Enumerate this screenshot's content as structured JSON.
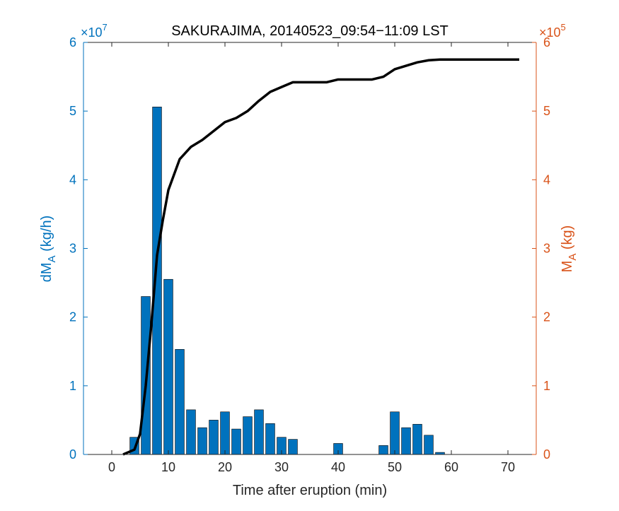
{
  "chart_data": {
    "type": "bar",
    "title": "SAKURAJIMA, 20140523_09:54−11:09 LST",
    "xlabel": "Time after eruption (min)",
    "ylabel_left": {
      "main": "dM",
      "sub": "A",
      "unit": " (kg/h)"
    },
    "ylabel_right": {
      "main": "M",
      "sub": "A",
      "unit": " (kg)"
    },
    "left_exponent": {
      "base": "×10",
      "power": "7"
    },
    "right_exponent": {
      "base": "×10",
      "power": "5"
    },
    "xlim": [
      -5,
      75
    ],
    "ylim_left": [
      0,
      6
    ],
    "ylim_right": [
      0,
      6
    ],
    "x_ticks": [
      "0",
      "10",
      "20",
      "30",
      "40",
      "50",
      "60",
      "70"
    ],
    "left_ticks": [
      "0",
      "1",
      "2",
      "3",
      "4",
      "5",
      "6"
    ],
    "right_ticks": [
      "0",
      "1",
      "2",
      "3",
      "4",
      "5",
      "6"
    ],
    "colors": {
      "bars": "#0072BD",
      "bar_edge": "#000000",
      "cumulative_line": "#000000",
      "left_axis": "#0072BD",
      "right_axis": "#D95319"
    },
    "series": [
      {
        "type": "bar",
        "axis": "left",
        "x": [
          4,
          6,
          8,
          10,
          12,
          14,
          16,
          18,
          20,
          22,
          24,
          26,
          28,
          30,
          32,
          40,
          48,
          50,
          52,
          54,
          56,
          58
        ],
        "values": [
          0.25,
          2.3,
          5.06,
          2.55,
          1.53,
          0.65,
          0.39,
          0.5,
          0.62,
          0.37,
          0.55,
          0.65,
          0.45,
          0.25,
          0.22,
          0.16,
          0.13,
          0.62,
          0.39,
          0.44,
          0.28,
          0.03
        ]
      },
      {
        "type": "line",
        "axis": "right",
        "x": [
          2,
          4,
          5,
          6,
          7,
          8,
          9,
          10,
          12,
          14,
          16,
          18,
          20,
          22,
          24,
          26,
          28,
          30,
          32,
          34,
          36,
          38,
          40,
          42,
          44,
          46,
          48,
          50,
          52,
          54,
          56,
          58,
          60,
          62,
          64,
          66,
          68,
          70,
          72
        ],
        "values": [
          0.0,
          0.07,
          0.3,
          1.0,
          1.9,
          2.9,
          3.4,
          3.85,
          4.3,
          4.48,
          4.58,
          4.71,
          4.84,
          4.9,
          5.0,
          5.15,
          5.28,
          5.35,
          5.42,
          5.42,
          5.42,
          5.42,
          5.46,
          5.46,
          5.46,
          5.46,
          5.5,
          5.61,
          5.66,
          5.71,
          5.74,
          5.75,
          5.75,
          5.75,
          5.75,
          5.75,
          5.75,
          5.75,
          5.75
        ]
      }
    ]
  }
}
